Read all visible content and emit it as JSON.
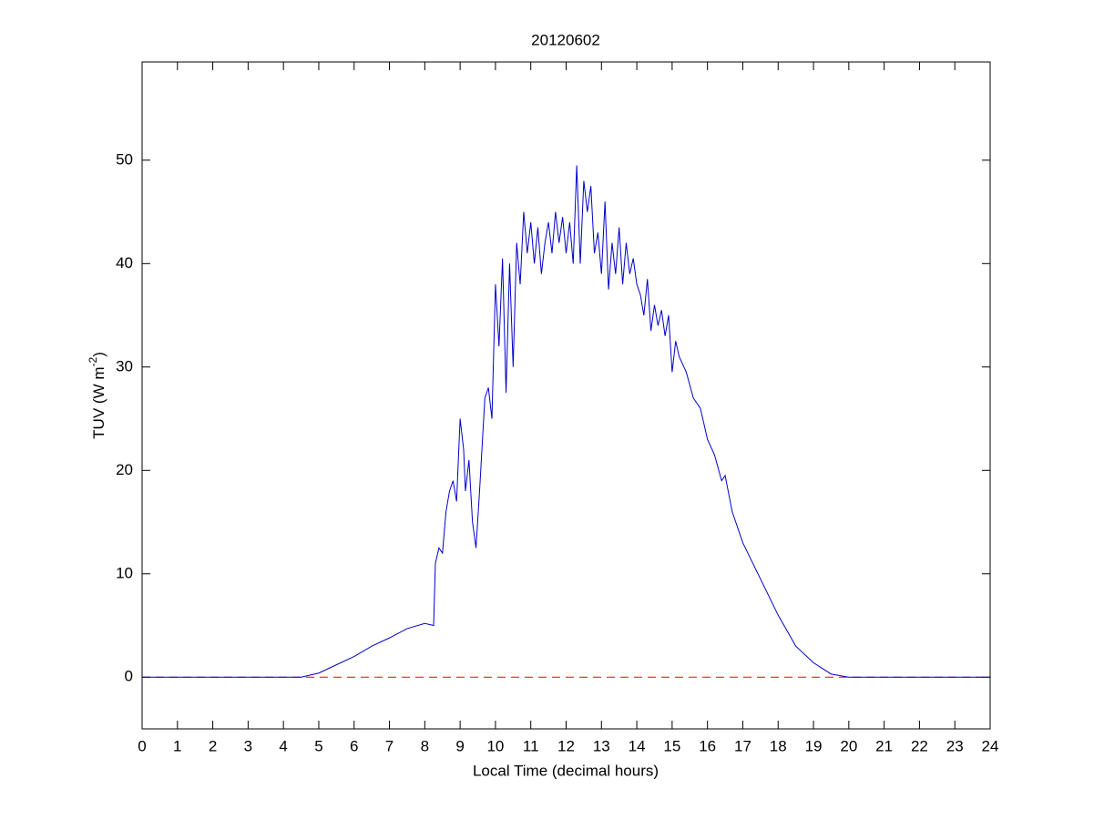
{
  "chart_data": {
    "type": "line",
    "title": "20120602",
    "xlabel": "Local Time (decimal hours)",
    "ylabel": {
      "text": "TUV (W m",
      "superscript": "-2",
      "suffix": ")"
    },
    "xlim": [
      0,
      24
    ],
    "ylim": [
      -5,
      59.5
    ],
    "xticks": [
      0,
      1,
      2,
      3,
      4,
      5,
      6,
      7,
      8,
      9,
      10,
      11,
      12,
      13,
      14,
      15,
      16,
      17,
      18,
      19,
      20,
      21,
      22,
      23,
      24
    ],
    "yticks": [
      0,
      10,
      20,
      30,
      40,
      50
    ],
    "reference_line": {
      "value": 0,
      "color": "#ff0000",
      "style": "dashed"
    },
    "x": [
      0,
      4.5,
      5,
      5.5,
      6,
      6.5,
      7,
      7.5,
      8,
      8.25,
      8.3,
      8.4,
      8.5,
      8.6,
      8.7,
      8.8,
      8.9,
      9,
      9.1,
      9.15,
      9.25,
      9.35,
      9.45,
      9.55,
      9.7,
      9.8,
      9.9,
      10,
      10.1,
      10.2,
      10.3,
      10.4,
      10.5,
      10.6,
      10.7,
      10.8,
      10.9,
      11,
      11.1,
      11.2,
      11.3,
      11.4,
      11.5,
      11.6,
      11.7,
      11.8,
      11.9,
      12,
      12.1,
      12.2,
      12.3,
      12.4,
      12.5,
      12.6,
      12.7,
      12.8,
      12.9,
      13,
      13.1,
      13.2,
      13.3,
      13.4,
      13.5,
      13.6,
      13.7,
      13.8,
      13.9,
      14,
      14.1,
      14.2,
      14.3,
      14.4,
      14.5,
      14.6,
      14.7,
      14.8,
      14.9,
      15,
      15.1,
      15.2,
      15.4,
      15.6,
      15.8,
      16,
      16.2,
      16.4,
      16.5,
      16.7,
      17,
      17.5,
      18,
      18.5,
      19,
      19.5,
      20,
      24
    ],
    "series": [
      {
        "name": "TUV",
        "color": "#0000cc",
        "values": [
          0,
          0,
          0.4,
          1.2,
          2,
          3,
          3.8,
          4.7,
          5.2,
          5,
          11,
          12.5,
          12,
          16,
          18,
          19,
          17,
          25,
          22,
          18,
          21,
          15,
          12.5,
          18,
          27,
          28,
          25,
          38,
          32,
          40.5,
          27.5,
          40,
          30,
          42,
          38,
          45,
          41,
          44,
          40,
          43.5,
          39,
          42,
          44,
          41,
          45,
          42,
          44.5,
          41,
          44,
          40,
          49.5,
          40,
          48,
          45,
          47.5,
          41,
          43,
          39,
          46,
          37.5,
          42,
          39,
          43.5,
          38,
          42,
          39,
          40.5,
          38,
          37,
          35,
          38.5,
          33.5,
          36,
          34,
          35.5,
          33,
          35,
          29.5,
          32.5,
          31,
          29.5,
          27,
          26,
          23,
          21.5,
          19,
          19.5,
          16,
          13,
          9.5,
          6,
          3,
          1.4,
          0.3,
          0,
          0
        ]
      }
    ]
  }
}
